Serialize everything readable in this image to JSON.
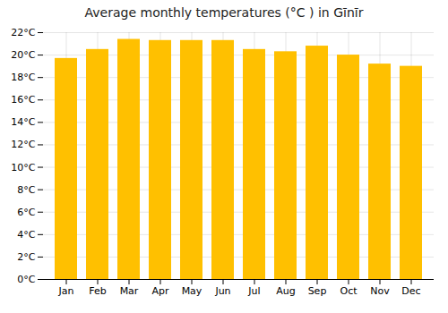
{
  "chart_data": {
    "type": "bar",
    "title": "Average monthly temperatures (°C ) in Gīnīr",
    "categories": [
      "Jan",
      "Feb",
      "Mar",
      "Apr",
      "May",
      "Jun",
      "Jul",
      "Aug",
      "Sep",
      "Oct",
      "Nov",
      "Dec"
    ],
    "values": [
      19.7,
      20.5,
      21.4,
      21.3,
      21.3,
      21.3,
      20.5,
      20.3,
      20.8,
      20.0,
      19.2,
      19.0
    ],
    "color": "#FFC000",
    "ylim": [
      0,
      22
    ],
    "yticks": [
      {
        "value": 0,
        "label": "0°C"
      },
      {
        "value": 2,
        "label": "2°C"
      },
      {
        "value": 4,
        "label": "4°C"
      },
      {
        "value": 6,
        "label": "6°C"
      },
      {
        "value": 8,
        "label": "8°C"
      },
      {
        "value": 10,
        "label": "10°C"
      },
      {
        "value": 12,
        "label": "12°C"
      },
      {
        "value": 14,
        "label": "14°C"
      },
      {
        "value": 16,
        "label": "16°C"
      },
      {
        "value": 18,
        "label": "18°C"
      },
      {
        "value": 20,
        "label": "20°C"
      },
      {
        "value": 22,
        "label": "22°C"
      }
    ],
    "grid": true
  }
}
